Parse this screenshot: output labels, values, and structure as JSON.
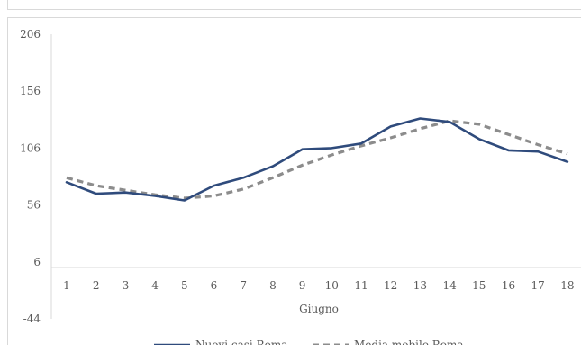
{
  "chart_data": {
    "type": "line",
    "title": "",
    "xlabel": "Giugno",
    "ylabel": "",
    "categories": [
      "1",
      "2",
      "3",
      "4",
      "5",
      "6",
      "7",
      "8",
      "9",
      "10",
      "11",
      "12",
      "13",
      "14",
      "15",
      "16",
      "17",
      "18"
    ],
    "ylim": [
      -44,
      206
    ],
    "yticks": [
      -44,
      6,
      56,
      106,
      156,
      206
    ],
    "grid": false,
    "legend": "bottom",
    "series": [
      {
        "name": "Nuovi casi Roma",
        "style": "solid",
        "color": "#2F4B7C",
        "values": [
          76,
          66,
          67,
          64,
          60,
          73,
          80,
          90,
          105,
          106,
          110,
          125,
          132,
          129,
          114,
          104,
          103,
          94
        ]
      },
      {
        "name": "Media mobile Roma",
        "style": "dashed",
        "color": "#8C8C8C",
        "values": [
          80,
          73,
          69,
          65,
          62,
          64,
          70,
          80,
          91,
          100,
          108,
          115,
          123,
          130,
          127,
          118,
          109,
          101
        ]
      }
    ]
  }
}
